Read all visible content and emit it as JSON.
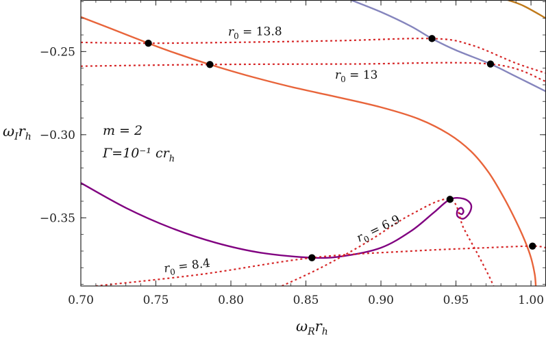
{
  "chart_data": {
    "type": "line",
    "title": "",
    "xlabel": "ω_R r_h",
    "ylabel": "ω_I r_h",
    "xlim": [
      0.7,
      1.01
    ],
    "ylim": [
      -0.391,
      -0.219
    ],
    "x_ticks": [
      0.7,
      0.75,
      0.8,
      0.85,
      0.9,
      0.95,
      1.0
    ],
    "x_tick_labels": [
      "0.70",
      "0.75",
      "0.80",
      "0.85",
      "0.90",
      "0.95",
      "1.00"
    ],
    "y_ticks": [
      -0.25,
      -0.3,
      -0.35
    ],
    "y_tick_labels": [
      "−0.25",
      "−0.30",
      "−0.35"
    ],
    "params": {
      "m_label": "m = 2",
      "gamma_label": "Γ=10⁻¹ cr",
      "gamma_sub": "h"
    },
    "series": [
      {
        "name": "orange-solid",
        "color": "#e8643a",
        "style": "solid",
        "points": [
          [
            0.7,
            -0.2292
          ],
          [
            0.72,
            -0.2362
          ],
          [
            0.745,
            -0.245
          ],
          [
            0.76,
            -0.25
          ],
          [
            0.786,
            -0.2578
          ],
          [
            0.81,
            -0.2642
          ],
          [
            0.84,
            -0.2712
          ],
          [
            0.87,
            -0.2772
          ],
          [
            0.9,
            -0.2835
          ],
          [
            0.925,
            -0.2905
          ],
          [
            0.945,
            -0.2995
          ],
          [
            0.96,
            -0.31
          ],
          [
            0.972,
            -0.323
          ],
          [
            0.982,
            -0.338
          ],
          [
            0.99,
            -0.352
          ],
          [
            0.996,
            -0.364
          ],
          [
            1.0,
            -0.374
          ],
          [
            1.0025,
            -0.384
          ],
          [
            1.0032,
            -0.391
          ]
        ]
      },
      {
        "name": "blue-solid",
        "color": "#8585bd",
        "style": "solid",
        "points": [
          [
            0.88,
            -0.219
          ],
          [
            0.9,
            -0.2262
          ],
          [
            0.92,
            -0.2348
          ],
          [
            0.934,
            -0.2422
          ],
          [
            0.95,
            -0.2492
          ],
          [
            0.973,
            -0.2575
          ],
          [
            0.99,
            -0.265
          ],
          [
            1.01,
            -0.274
          ]
        ]
      },
      {
        "name": "brown-solid",
        "color": "#c07a1a",
        "style": "solid",
        "points": [
          [
            0.9845,
            -0.219
          ],
          [
            0.995,
            -0.2225
          ],
          [
            1.01,
            -0.23
          ]
        ]
      },
      {
        "name": "purple-solid",
        "color": "#800080",
        "style": "solid",
        "points": [
          [
            0.7,
            -0.329
          ],
          [
            0.73,
            -0.344
          ],
          [
            0.76,
            -0.356
          ],
          [
            0.79,
            -0.365
          ],
          [
            0.82,
            -0.371
          ],
          [
            0.854,
            -0.374
          ],
          [
            0.875,
            -0.373
          ],
          [
            0.9,
            -0.368
          ],
          [
            0.92,
            -0.358
          ],
          [
            0.935,
            -0.347
          ],
          [
            0.946,
            -0.3389
          ],
          [
            0.955,
            -0.3385
          ],
          [
            0.96,
            -0.342
          ],
          [
            0.959,
            -0.347
          ],
          [
            0.955,
            -0.3505
          ],
          [
            0.951,
            -0.349
          ],
          [
            0.951,
            -0.3455
          ],
          [
            0.9535,
            -0.344
          ],
          [
            0.955,
            -0.346
          ],
          [
            0.954,
            -0.3478
          ],
          [
            0.952,
            -0.3472
          ]
        ]
      },
      {
        "name": "r0-13.8-dotted",
        "color": "#d62728",
        "style": "dotted",
        "points": [
          [
            0.7,
            -0.2445
          ],
          [
            0.745,
            -0.245
          ],
          [
            0.8,
            -0.2445
          ],
          [
            0.87,
            -0.2435
          ],
          [
            0.934,
            -0.2422
          ],
          [
            0.96,
            -0.246
          ],
          [
            0.99,
            -0.257
          ],
          [
            1.01,
            -0.263
          ]
        ]
      },
      {
        "name": "r0-13-dotted",
        "color": "#d62728",
        "style": "dotted",
        "points": [
          [
            0.7,
            -0.2588
          ],
          [
            0.786,
            -0.2578
          ],
          [
            0.88,
            -0.2575
          ],
          [
            0.973,
            -0.2575
          ],
          [
            1.01,
            -0.268
          ]
        ]
      },
      {
        "name": "r0-8.4-dotted",
        "color": "#d62728",
        "style": "dotted",
        "points": [
          [
            0.71,
            -0.391
          ],
          [
            0.78,
            -0.384
          ],
          [
            0.854,
            -0.374
          ],
          [
            0.92,
            -0.37
          ],
          [
            0.97,
            -0.368
          ],
          [
            1.001,
            -0.367
          ],
          [
            1.01,
            -0.368
          ]
        ]
      },
      {
        "name": "r0-6.9-dotted",
        "color": "#d62728",
        "style": "dotted",
        "points": [
          [
            0.834,
            -0.391
          ],
          [
            0.86,
            -0.38
          ],
          [
            0.89,
            -0.365
          ],
          [
            0.92,
            -0.348
          ],
          [
            0.946,
            -0.3389
          ],
          [
            0.955,
            -0.356
          ],
          [
            0.964,
            -0.371
          ],
          [
            0.972,
            -0.385
          ],
          [
            0.975,
            -0.391
          ]
        ]
      }
    ],
    "markers": [
      {
        "x": 0.745,
        "y": -0.245
      },
      {
        "x": 0.786,
        "y": -0.2578
      },
      {
        "x": 0.934,
        "y": -0.2422
      },
      {
        "x": 0.973,
        "y": -0.2575
      },
      {
        "x": 0.946,
        "y": -0.3389
      },
      {
        "x": 0.854,
        "y": -0.374
      },
      {
        "x": 1.001,
        "y": -0.367
      }
    ],
    "annotations": [
      {
        "id": "r0-13.8",
        "text": "13.8"
      },
      {
        "id": "r0-13",
        "text": "13"
      },
      {
        "id": "r0-6.9",
        "text": "6.9"
      },
      {
        "id": "r0-8.4",
        "text": "8.4"
      }
    ]
  }
}
